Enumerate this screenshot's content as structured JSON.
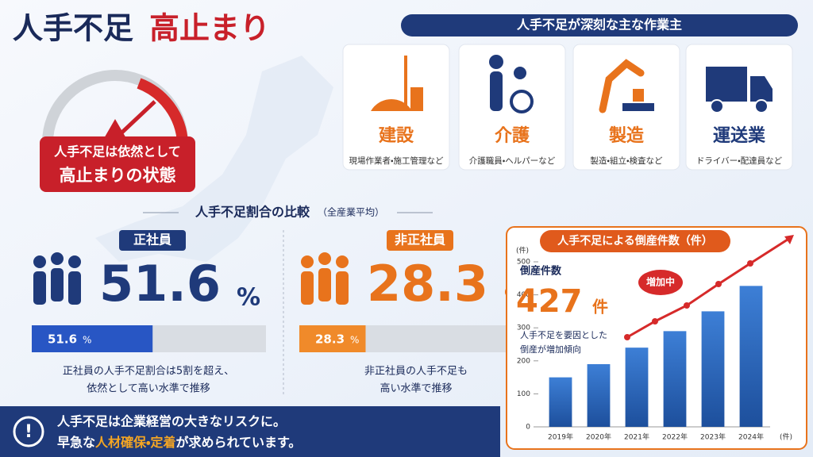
{
  "title": {
    "main": "人手不足",
    "accent": "高止まり"
  },
  "gauge": {
    "lines": [
      "人手不足は依然として",
      "高止まりの状態"
    ]
  },
  "industries": {
    "title": "人手不足が深刻な主な作業主",
    "items": [
      {
        "name": "建設",
        "desc": "現場作業者・施工管理など"
      },
      {
        "name": "介護",
        "desc": "介護職員・ヘルパーなど"
      },
      {
        "name": "製造",
        "desc": "製造・組立・検査など"
      },
      {
        "name": "運送業",
        "desc": "ドライバー・配達員など"
      }
    ]
  },
  "comparison": {
    "title": "人手不足割合の比較",
    "note": "（全産業平均）",
    "xlim": [
      0,
      100
    ],
    "regular": {
      "label": "正社員",
      "value": 51.6,
      "unit": "%",
      "caption": [
        "正社員の人手不足割合は5割を超え、",
        "依然として高い水準で推移"
      ]
    },
    "nonregular": {
      "label": "非正社員",
      "value": 28.3,
      "unit": "%",
      "caption": [
        "非正社員の人手不足も",
        "高い水準で推移"
      ]
    }
  },
  "chart_data": {
    "type": "bar",
    "title": "人手不足による倒産件数（件）",
    "categories": [
      "2019年",
      "2020年",
      "2021年",
      "2022年",
      "2023年",
      "2024年"
    ],
    "values": [
      150,
      190,
      240,
      290,
      350,
      427
    ],
    "color": "#2f6fc4",
    "ylim": [
      0,
      500
    ],
    "yticks": [
      0,
      100,
      200,
      300,
      400,
      500
    ],
    "y_label": "(件)",
    "x_label": "(件)",
    "headline": {
      "label": "倒産件数",
      "value": 427,
      "unit": "件",
      "note": [
        "人手不足を要因とした",
        "倒産が増加傾向"
      ]
    },
    "callout": "増加中"
  },
  "footer": {
    "line1": "人手不足は企業経営の大きなリスクに。",
    "line2": [
      "早急な",
      "人材確保・定着",
      "が求められています。"
    ]
  }
}
